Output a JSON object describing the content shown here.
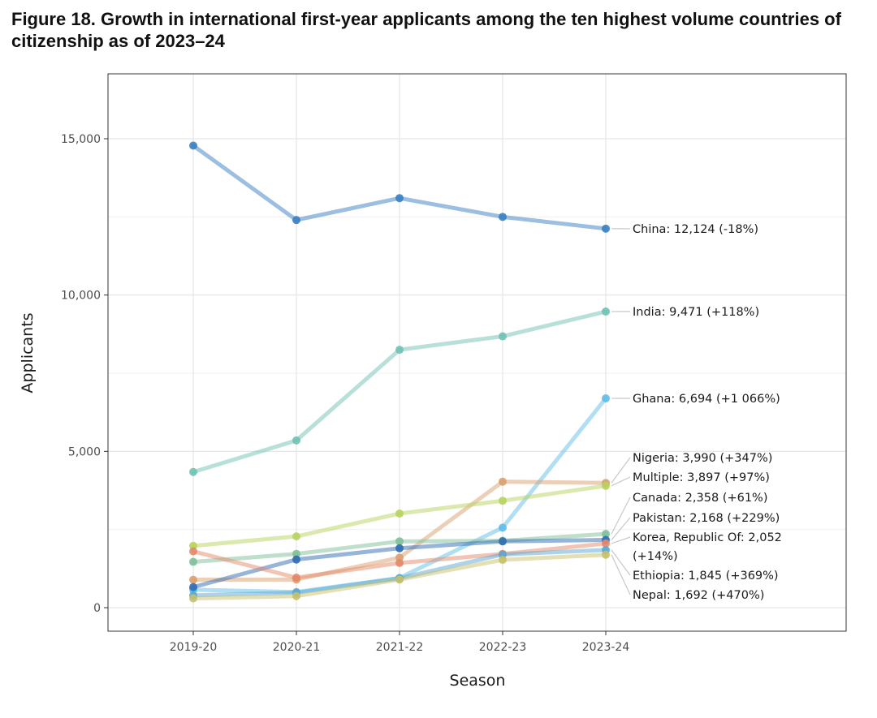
{
  "figure": {
    "title": "Figure 18. Growth in international first-year applicants among the ten highest volume countries of citizenship as of 2023–24"
  },
  "chart_data": {
    "type": "line",
    "xlabel": "Season",
    "ylabel": "Applicants",
    "categories": [
      "2019-20",
      "2020-21",
      "2021-22",
      "2022-23",
      "2023-24"
    ],
    "ylim": [
      -800,
      17000
    ],
    "yticks": [
      0,
      5000,
      10000,
      15000
    ],
    "ytick_labels": [
      "0",
      "5,000",
      "10,000",
      "15,000"
    ],
    "grid": true,
    "series": [
      {
        "name": "China",
        "color": "#3a80c3",
        "values": [
          14780,
          12400,
          13100,
          12500,
          12124
        ],
        "label_lines": [
          "China: 12,124 (-18%)"
        ]
      },
      {
        "name": "India",
        "color": "#6fc2b4",
        "values": [
          4340,
          5350,
          8250,
          8680,
          9471
        ],
        "label_lines": [
          "India: 9,471 (+118%)"
        ]
      },
      {
        "name": "Ghana",
        "color": "#62bde6",
        "values": [
          574,
          500,
          950,
          2560,
          6694
        ],
        "label_lines": [
          "Ghana: 6,694 (+1 066%)"
        ]
      },
      {
        "name": "Nigeria",
        "color": "#d9a070",
        "values": [
          893,
          900,
          1600,
          4030,
          3990
        ],
        "label_lines": [
          "Nigeria: 3,990 (+347%)"
        ]
      },
      {
        "name": "Multiple",
        "color": "#b7d35e",
        "values": [
          1978,
          2280,
          3010,
          3420,
          3897
        ],
        "label_lines": [
          "Multiple: 3,897 (+97%)"
        ]
      },
      {
        "name": "Canada",
        "color": "#7fc09a",
        "values": [
          1465,
          1720,
          2120,
          2140,
          2358
        ],
        "label_lines": [
          "Canada: 2,358 (+61%)"
        ]
      },
      {
        "name": "Pakistan",
        "color": "#2f6bb3",
        "values": [
          659,
          1540,
          1900,
          2120,
          2168
        ],
        "label_lines": [
          "Pakistan: 2,168 (+229%)"
        ]
      },
      {
        "name": "Korea, Republic Of",
        "color": "#e38a6a",
        "values": [
          1800,
          960,
          1430,
          1720,
          2052
        ],
        "label_lines": [
          "Korea, Republic Of: 2,052",
          "(+14%)"
        ]
      },
      {
        "name": "Ethiopia",
        "color": "#5aa7d6",
        "values": [
          393,
          480,
          940,
          1700,
          1845
        ],
        "label_lines": [
          "Ethiopia: 1,845 (+369%)"
        ]
      },
      {
        "name": "Nepal",
        "color": "#c9c06a",
        "values": [
          297,
          370,
          900,
          1530,
          1692
        ],
        "label_lines": [
          "Nepal: 1,692 (+470%)"
        ]
      }
    ]
  }
}
